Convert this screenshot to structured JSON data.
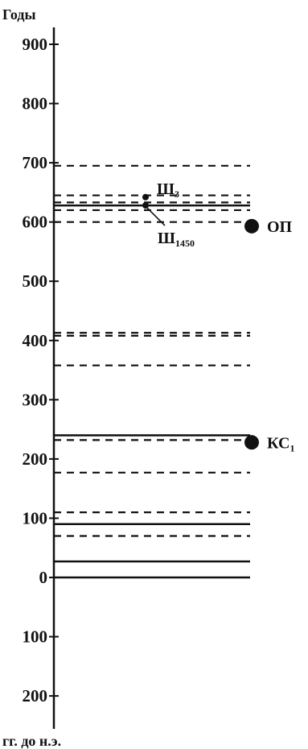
{
  "chart_data": {
    "type": "line",
    "title": "",
    "ylabel": "Годы",
    "xlabel": "гг. до н.э.",
    "ylim": [
      -250,
      910
    ],
    "grid": false,
    "tick_labels": [
      "900",
      "800",
      "700",
      "600",
      "500",
      "400",
      "300",
      "200",
      "100",
      "0",
      "100",
      "200"
    ],
    "tick_values": [
      900,
      800,
      700,
      600,
      500,
      400,
      300,
      200,
      100,
      0,
      -100,
      -200
    ],
    "lines": [
      {
        "y": 695,
        "style": "dashed"
      },
      {
        "y": 645,
        "style": "dashed"
      },
      {
        "y": 633,
        "style": "dashed"
      },
      {
        "y": 628,
        "style": "solid"
      },
      {
        "y": 620,
        "style": "dashed"
      },
      {
        "y": 600,
        "style": "dashed"
      },
      {
        "y": 413,
        "style": "dashed"
      },
      {
        "y": 408,
        "style": "dashed"
      },
      {
        "y": 358,
        "style": "dashed"
      },
      {
        "y": 240,
        "style": "solid"
      },
      {
        "y": 232,
        "style": "dashed"
      },
      {
        "y": 177,
        "style": "dashed"
      },
      {
        "y": 110,
        "style": "dashed"
      },
      {
        "y": 90,
        "style": "solid"
      },
      {
        "y": 70,
        "style": "dashed"
      },
      {
        "y": 27,
        "style": "solid"
      },
      {
        "y": 0,
        "style": "solid"
      }
    ],
    "markers": [
      {
        "label": "Ш",
        "sub": "3",
        "y": 642
      },
      {
        "label": "Ш",
        "sub": "1450",
        "y": 628
      }
    ],
    "big_points": [
      {
        "label": "ОП",
        "y": 593
      },
      {
        "label": "КС",
        "sub": "1",
        "y": 228
      }
    ]
  }
}
